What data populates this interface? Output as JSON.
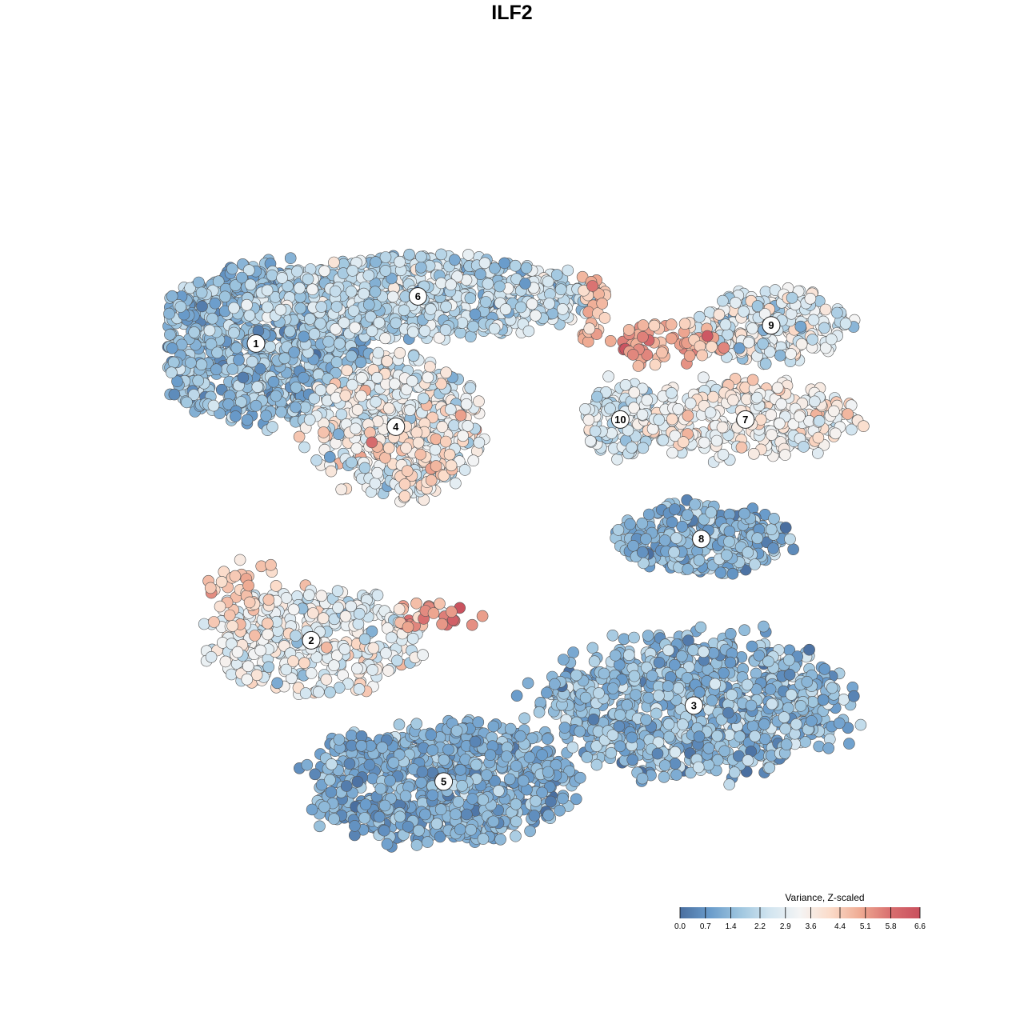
{
  "chart_data": {
    "type": "scatter",
    "title": "ILF2",
    "xlabel": "",
    "ylabel": "",
    "xlim": [
      0,
      100
    ],
    "ylim": [
      0,
      100
    ],
    "grid": false,
    "legend": {
      "title": "Variance, Z-scaled",
      "placement": "bottom-right",
      "ticks": [
        "0.0",
        "0.7",
        "1.4",
        "2.2",
        "2.9",
        "3.6",
        "4.4",
        "5.1",
        "5.8",
        "6.6"
      ],
      "min": 0.0,
      "max": 6.6,
      "colors": [
        "#4a6fa0",
        "#6a9ccb",
        "#9fc6df",
        "#d2e5f0",
        "#f4f4f4",
        "#fbdcca",
        "#efab93",
        "#d97070",
        "#c9505e"
      ]
    },
    "clusters": [
      {
        "label": "1",
        "x": 12.5,
        "y": 73.0,
        "sx": 9.5,
        "sy": 6.5,
        "n": 900,
        "mean": 1.45,
        "sd": 0.55
      },
      {
        "label": "6",
        "x": 34.5,
        "y": 79.5,
        "sx": 14.0,
        "sy": 3.5,
        "n": 750,
        "mean": 2.2,
        "sd": 0.6
      },
      {
        "label": "9",
        "x": 82.5,
        "y": 75.5,
        "sx": 6.5,
        "sy": 3.2,
        "n": 260,
        "mean": 2.8,
        "sd": 0.7
      },
      {
        "label": "4",
        "x": 31.5,
        "y": 61.5,
        "sx": 7.0,
        "sy": 6.0,
        "n": 500,
        "mean": 3.0,
        "sd": 0.75
      },
      {
        "label": "10",
        "x": 62.0,
        "y": 62.5,
        "sx": 3.2,
        "sy": 3.5,
        "n": 120,
        "mean": 2.5,
        "sd": 0.6
      },
      {
        "label": "7",
        "x": 79.0,
        "y": 62.5,
        "sx": 9.5,
        "sy": 3.2,
        "n": 330,
        "mean": 3.4,
        "sd": 0.6
      },
      {
        "label": "8",
        "x": 73.0,
        "y": 46.0,
        "sx": 7.0,
        "sy": 3.0,
        "n": 320,
        "mean": 1.3,
        "sd": 0.5
      },
      {
        "label": "2",
        "x": 20.0,
        "y": 32.0,
        "sx": 9.0,
        "sy": 4.5,
        "n": 380,
        "mean": 3.0,
        "sd": 0.7
      },
      {
        "label": "3",
        "x": 72.0,
        "y": 23.0,
        "sx": 12.5,
        "sy": 6.0,
        "n": 950,
        "mean": 1.4,
        "sd": 0.6
      },
      {
        "label": "5",
        "x": 38.0,
        "y": 12.5,
        "sx": 11.0,
        "sy": 5.0,
        "n": 850,
        "mean": 1.15,
        "sd": 0.45
      }
    ],
    "hotspots": [
      {
        "x": 58.0,
        "y": 78.0,
        "sx": 1.2,
        "sy": 3.0,
        "n": 30,
        "mean": 4.6,
        "sd": 0.5
      },
      {
        "x": 68.0,
        "y": 73.0,
        "sx": 4.5,
        "sy": 2.0,
        "n": 70,
        "mean": 4.9,
        "sd": 0.5
      },
      {
        "x": 37.0,
        "y": 35.5,
        "sx": 4.0,
        "sy": 1.2,
        "n": 30,
        "mean": 5.2,
        "sd": 0.8
      },
      {
        "x": 11.0,
        "y": 38.0,
        "sx": 3.0,
        "sy": 3.5,
        "n": 40,
        "mean": 4.3,
        "sd": 0.4
      },
      {
        "x": 34.0,
        "y": 57.0,
        "sx": 3.5,
        "sy": 3.0,
        "n": 40,
        "mean": 4.2,
        "sd": 0.4
      }
    ]
  }
}
